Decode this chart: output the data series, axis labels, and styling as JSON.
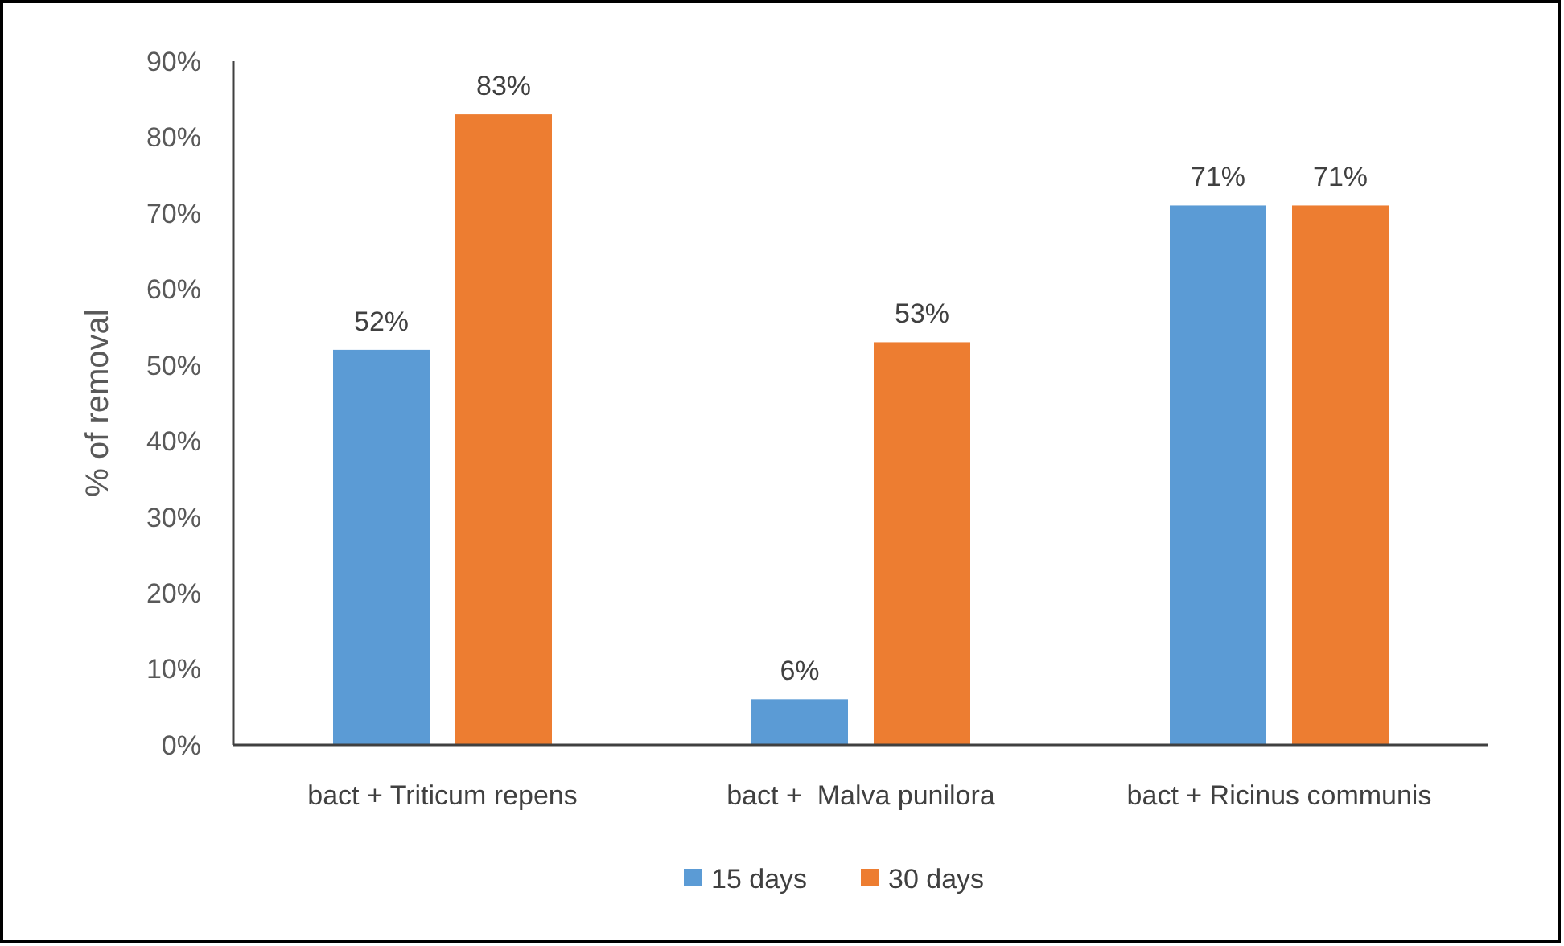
{
  "chart_data": {
    "type": "bar",
    "ylabel": "% of removal",
    "categories": [
      "bact + Triticum repens",
      "bact +  Malva punilora",
      "bact + Ricinus communis"
    ],
    "series": [
      {
        "name": "15 days",
        "color": "#5b9bd5",
        "values": [
          52,
          6,
          71
        ],
        "value_labels": [
          "52%",
          "6%",
          "71%"
        ]
      },
      {
        "name": "30 days",
        "color": "#ed7d31",
        "values": [
          83,
          53,
          71
        ],
        "value_labels": [
          "83%",
          "53%",
          "71%"
        ]
      }
    ],
    "ylim": [
      0,
      90
    ],
    "yticks": [
      {
        "value": 0,
        "label": "0%"
      },
      {
        "value": 10,
        "label": "10%"
      },
      {
        "value": 20,
        "label": "20%"
      },
      {
        "value": 30,
        "label": "30%"
      },
      {
        "value": 40,
        "label": "40%"
      },
      {
        "value": 50,
        "label": "50%"
      },
      {
        "value": 60,
        "label": "60%"
      },
      {
        "value": 70,
        "label": "70%"
      },
      {
        "value": 80,
        "label": "80%"
      },
      {
        "value": 90,
        "label": "90%"
      }
    ],
    "grid": false,
    "legend": "bottom"
  }
}
